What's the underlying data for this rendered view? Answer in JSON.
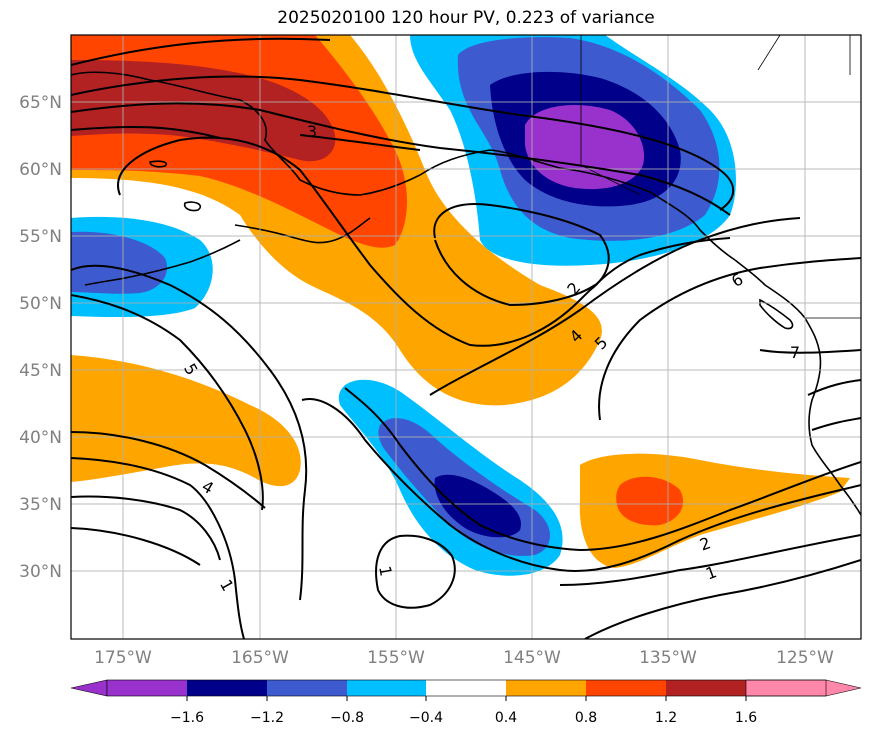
{
  "title": "2025020100 120 hour PV, 0.223 of variance",
  "map": {
    "projection": "lat-lon",
    "lon_range": [
      -179,
      -121
    ],
    "lat_range": [
      25,
      70
    ],
    "gridlines": true,
    "lat_ticks": [
      "65°N",
      "60°N",
      "55°N",
      "50°N",
      "45°N",
      "40°N",
      "35°N",
      "30°N"
    ],
    "lon_ticks": [
      "175°W",
      "165°W",
      "155°W",
      "145°W",
      "135°W",
      "125°W"
    ]
  },
  "contour_labels": [
    "3",
    "2",
    "4",
    "5",
    "6",
    "7",
    "5",
    "4",
    "1",
    "1",
    "2",
    "1"
  ],
  "colorbar": {
    "extend": "both",
    "tick_labels": [
      "−1.6",
      "−1.2",
      "−0.8",
      "−0.4",
      "0.4",
      "0.8",
      "1.2",
      "1.6"
    ],
    "colors": [
      "#9932cc",
      "#00008b",
      "#3d5bcf",
      "#00bfff",
      "#ffffff",
      "#ffa500",
      "#ff4500",
      "#b22222",
      "#ff88aa"
    ]
  }
}
